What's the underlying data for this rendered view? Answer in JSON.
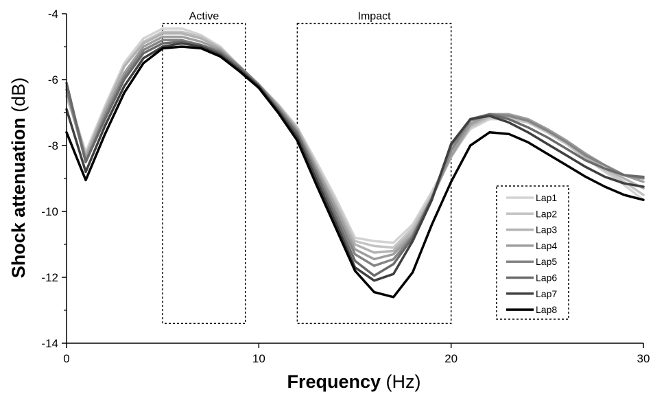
{
  "chart_data": {
    "type": "line",
    "xlabel": {
      "bold": "Frequency",
      "unit": " (Hz)"
    },
    "ylabel": {
      "bold": "Shock attenuation",
      "unit": " (dB)"
    },
    "xlim": [
      0,
      30
    ],
    "ylim": [
      -14,
      -4
    ],
    "xticks": [
      "0",
      "10",
      "20",
      "30"
    ],
    "yticks": [
      "-4",
      "-6",
      "-8",
      "-10",
      "-12",
      "-14"
    ],
    "grid": false,
    "legend_position": "bottom-right",
    "annotations": [
      {
        "label": "Active",
        "x_range": [
          5,
          9.3
        ],
        "y_range": [
          -13.4,
          -4.3
        ]
      },
      {
        "label": "Impact",
        "x_range": [
          12,
          20
        ],
        "y_range": [
          -13.4,
          -4.3
        ]
      }
    ],
    "x": [
      0,
      1,
      2,
      3,
      4,
      5,
      6,
      7,
      8,
      9,
      10,
      11,
      12,
      13,
      14,
      15,
      16,
      17,
      18,
      19,
      20,
      21,
      22,
      23,
      24,
      25,
      26,
      27,
      28,
      29,
      30
    ],
    "series": [
      {
        "name": "Lap1",
        "color": "#d3d3d3",
        "width": 3.5,
        "values": [
          -6.4,
          -8.2,
          -6.8,
          -5.5,
          -4.75,
          -4.45,
          -4.45,
          -4.65,
          -5.0,
          -5.6,
          -6.15,
          -6.75,
          -7.45,
          -8.5,
          -9.6,
          -10.8,
          -10.9,
          -10.95,
          -10.4,
          -9.4,
          -8.3,
          -7.5,
          -7.2,
          -7.2,
          -7.3,
          -7.6,
          -7.95,
          -8.4,
          -8.8,
          -9.2,
          -9.65
        ]
      },
      {
        "name": "Lap2",
        "color": "#c4c4c4",
        "width": 3.5,
        "values": [
          -6.5,
          -8.3,
          -6.9,
          -5.6,
          -4.85,
          -4.55,
          -4.55,
          -4.7,
          -5.05,
          -5.6,
          -6.15,
          -6.75,
          -7.45,
          -8.6,
          -9.7,
          -10.9,
          -11.05,
          -11.1,
          -10.5,
          -9.5,
          -8.35,
          -7.45,
          -7.15,
          -7.15,
          -7.3,
          -7.6,
          -7.95,
          -8.4,
          -8.75,
          -9.1,
          -9.5
        ]
      },
      {
        "name": "Lap3",
        "color": "#b2b2b2",
        "width": 3.5,
        "values": [
          -6.3,
          -8.3,
          -6.9,
          -5.6,
          -4.9,
          -4.6,
          -4.6,
          -4.75,
          -5.05,
          -5.6,
          -6.15,
          -6.8,
          -7.5,
          -8.65,
          -9.8,
          -11.0,
          -11.25,
          -11.2,
          -10.6,
          -9.55,
          -8.35,
          -7.4,
          -7.1,
          -7.05,
          -7.25,
          -7.55,
          -7.9,
          -8.35,
          -8.7,
          -9.0,
          -9.3
        ]
      },
      {
        "name": "Lap4",
        "color": "#9e9e9e",
        "width": 3.5,
        "values": [
          -6.2,
          -8.4,
          -7.0,
          -5.8,
          -5.0,
          -4.7,
          -4.7,
          -4.85,
          -5.1,
          -5.6,
          -6.15,
          -6.8,
          -7.55,
          -8.7,
          -9.9,
          -11.15,
          -11.45,
          -11.3,
          -10.7,
          -9.6,
          -8.3,
          -7.35,
          -7.05,
          -7.05,
          -7.2,
          -7.5,
          -7.85,
          -8.25,
          -8.6,
          -8.9,
          -9.1
        ]
      },
      {
        "name": "Lap5",
        "color": "#858585",
        "width": 3.5,
        "values": [
          -6.3,
          -8.5,
          -7.1,
          -5.9,
          -5.1,
          -4.8,
          -4.8,
          -4.95,
          -5.15,
          -5.6,
          -6.15,
          -6.85,
          -7.6,
          -8.8,
          -10.05,
          -11.3,
          -11.65,
          -11.45,
          -10.75,
          -9.6,
          -8.15,
          -7.25,
          -7.05,
          -7.1,
          -7.25,
          -7.55,
          -7.9,
          -8.3,
          -8.6,
          -8.9,
          -9.0
        ]
      },
      {
        "name": "Lap6",
        "color": "#6a6a6a",
        "width": 3.5,
        "values": [
          -6.1,
          -8.5,
          -7.2,
          -6.0,
          -5.2,
          -4.9,
          -4.85,
          -4.95,
          -5.2,
          -5.65,
          -6.2,
          -6.9,
          -7.65,
          -8.9,
          -10.2,
          -11.5,
          -11.95,
          -11.6,
          -10.8,
          -9.6,
          -8.0,
          -7.2,
          -7.05,
          -7.2,
          -7.45,
          -7.75,
          -8.1,
          -8.45,
          -8.7,
          -8.9,
          -8.95
        ]
      },
      {
        "name": "Lap7",
        "color": "#3f3f3f",
        "width": 3.5,
        "values": [
          -6.9,
          -8.8,
          -7.4,
          -6.2,
          -5.35,
          -5.0,
          -4.9,
          -5.0,
          -5.25,
          -5.7,
          -6.2,
          -6.95,
          -7.75,
          -9.05,
          -10.35,
          -11.7,
          -12.1,
          -11.9,
          -10.9,
          -9.65,
          -7.95,
          -7.2,
          -7.1,
          -7.3,
          -7.6,
          -7.95,
          -8.3,
          -8.65,
          -8.95,
          -9.15,
          -9.25
        ]
      },
      {
        "name": "Lap8",
        "color": "#000000",
        "width": 3.5,
        "values": [
          -7.6,
          -9.05,
          -7.65,
          -6.4,
          -5.5,
          -5.05,
          -5.0,
          -5.05,
          -5.3,
          -5.75,
          -6.25,
          -7.0,
          -7.85,
          -9.2,
          -10.5,
          -11.8,
          -12.45,
          -12.6,
          -11.85,
          -10.4,
          -9.1,
          -8.0,
          -7.6,
          -7.65,
          -7.9,
          -8.25,
          -8.6,
          -8.95,
          -9.25,
          -9.5,
          -9.65
        ]
      }
    ]
  }
}
